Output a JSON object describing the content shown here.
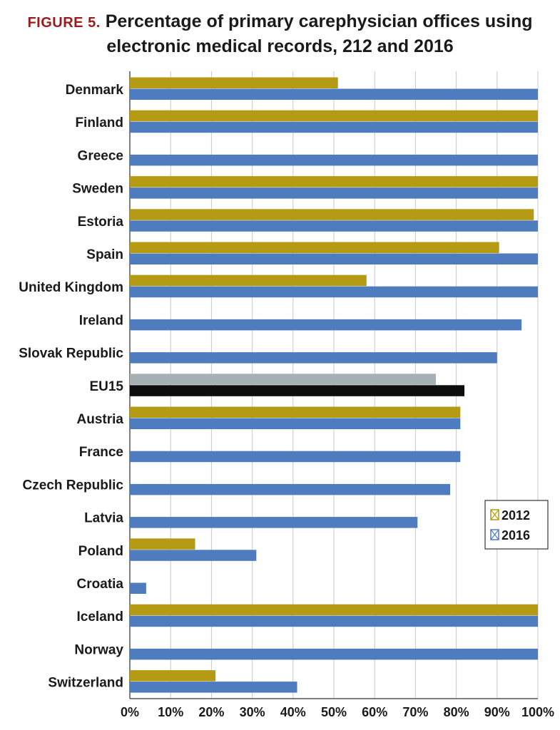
{
  "figure": {
    "label": "FIGURE 5.",
    "title_line1": "Percentage of primary carephysician offices using",
    "title_line2": "electronic medical records, 212 and 2016"
  },
  "chart_data": {
    "type": "bar",
    "orientation": "horizontal",
    "title": "FIGURE 5. Percentage of primary carephysician offices using electronic medical records, 212 and 2016",
    "xlabel": "",
    "ylabel": "",
    "xlim": [
      0,
      100
    ],
    "x_ticks": [
      "0%",
      "10%",
      "20%",
      "30%",
      "40%",
      "50%",
      "60%",
      "70%",
      "80%",
      "90%",
      "100%"
    ],
    "grid": "vertical",
    "legend_position": "right",
    "categories": [
      "Denmark",
      "Finland",
      "Greece",
      "Sweden",
      "Estoria",
      "Spain",
      "United Kingdom",
      "Ireland",
      "Slovak Republic",
      "EU15",
      "Austria",
      "France",
      "Czech Republic",
      "Latvia",
      "Poland",
      "Croatia",
      "Iceland",
      "Norway",
      "Switzerland"
    ],
    "series": [
      {
        "name": "2012",
        "color": "#b59a14",
        "values": [
          51,
          100,
          null,
          100,
          99,
          90.5,
          58,
          null,
          null,
          75,
          81,
          null,
          null,
          null,
          16,
          null,
          100,
          null,
          21
        ]
      },
      {
        "name": "2016",
        "color": "#4f7bbf",
        "values": [
          100,
          100,
          100,
          100,
          100,
          100,
          100,
          96,
          90,
          82,
          81,
          81,
          78.5,
          70.5,
          31,
          4,
          100,
          100,
          41
        ]
      }
    ],
    "highlight": {
      "category": "EU15",
      "colors": {
        "2012": "#a7b1b5",
        "2016": "#0d0d0d"
      }
    }
  }
}
